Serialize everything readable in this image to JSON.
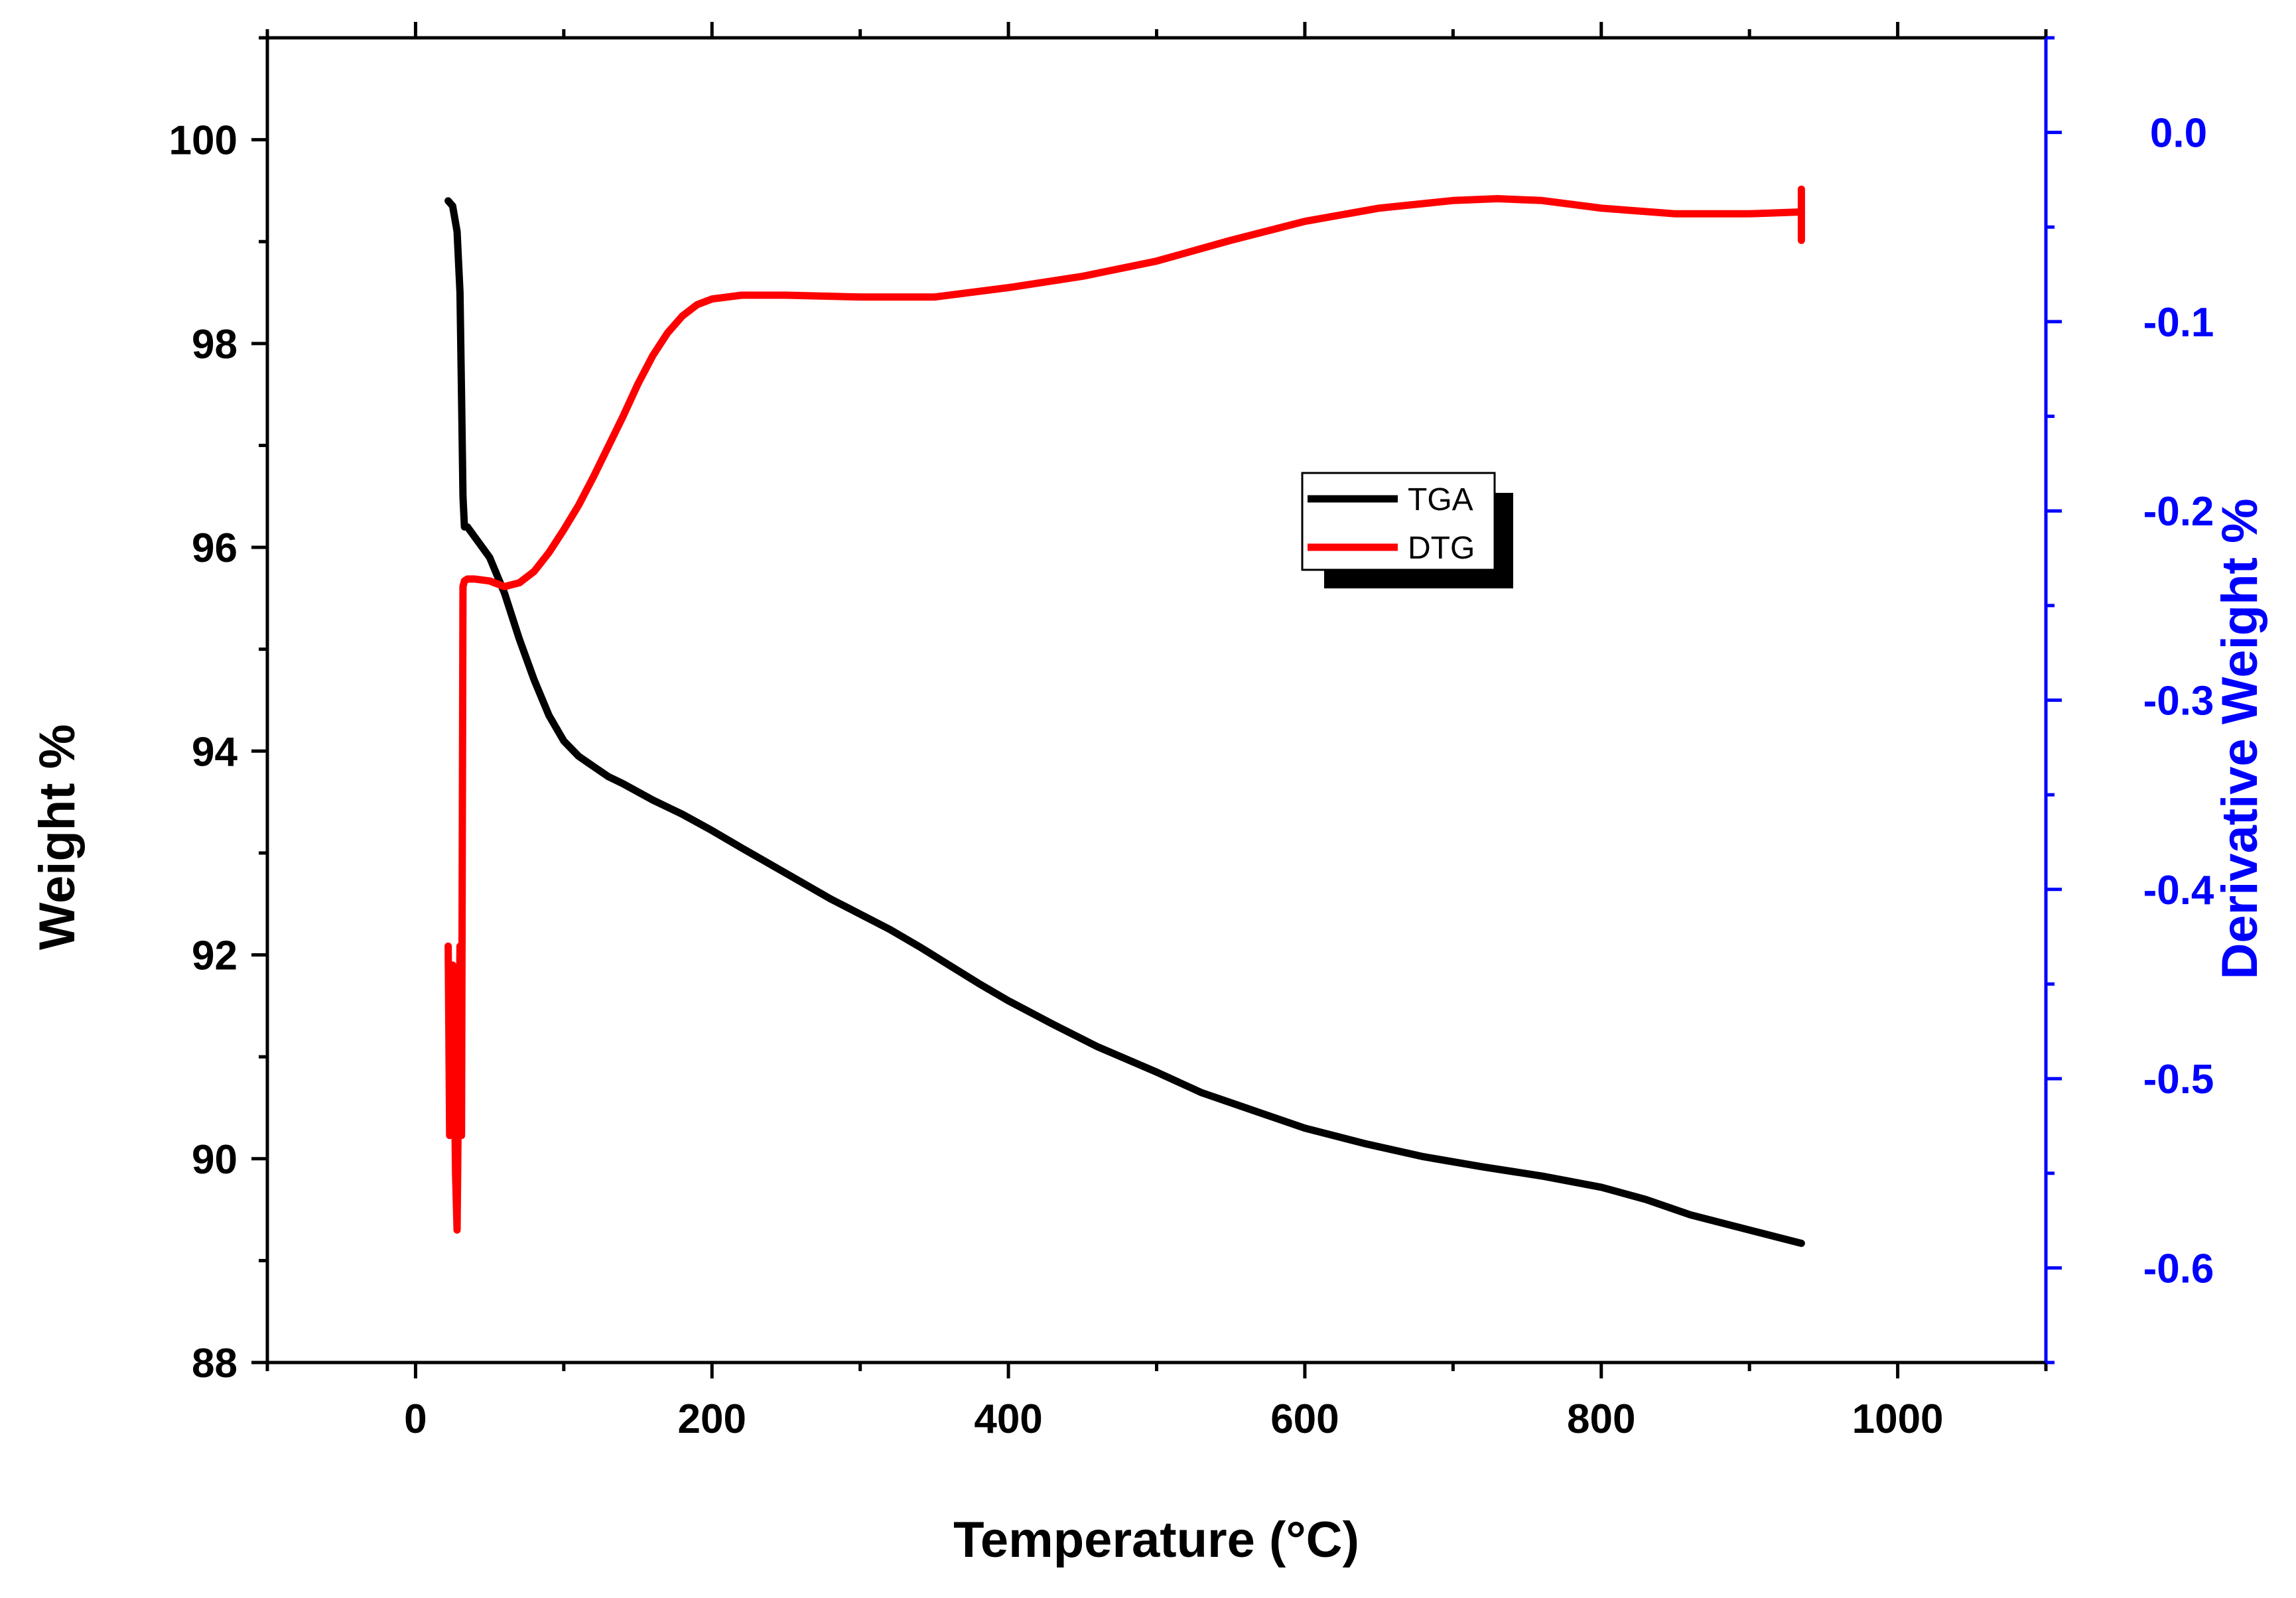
{
  "chart_data": {
    "type": "line",
    "title": "",
    "xlabel": "Temperature (°C)",
    "ylabel": "Weight %",
    "y2label": "Derivative Weight %",
    "xlim": [
      -100,
      1100
    ],
    "ylim": [
      88,
      101
    ],
    "y2lim": [
      -0.65,
      0.05
    ],
    "x_ticks": [
      0,
      200,
      400,
      600,
      800,
      1000
    ],
    "y_ticks": [
      88,
      90,
      92,
      94,
      96,
      98,
      100
    ],
    "y2_ticks": [
      0.0,
      -0.1,
      -0.2,
      -0.3,
      -0.4,
      -0.5,
      -0.6
    ],
    "x_tick_labels": [
      "0",
      "200",
      "400",
      "600",
      "800",
      "1000"
    ],
    "y_tick_labels": [
      "88",
      "90",
      "92",
      "94",
      "96",
      "98",
      "100"
    ],
    "y2_tick_labels": [
      "0.0",
      "-0.1",
      "-0.2",
      "-0.3",
      "-0.4",
      "-0.5",
      "-0.6"
    ],
    "legend_position": "center-right",
    "grid": false,
    "colors": {
      "tga": "#000000",
      "dtg": "#ff0000",
      "right_axis": "#0000ff",
      "axis": "#000000"
    },
    "series": [
      {
        "name": "TGA",
        "axis": "left",
        "x": [
          22,
          25,
          28,
          30,
          31,
          32,
          33,
          35,
          40,
          50,
          60,
          70,
          80,
          90,
          100,
          110,
          120,
          130,
          140,
          160,
          180,
          200,
          220,
          250,
          280,
          300,
          320,
          340,
          360,
          380,
          400,
          430,
          460,
          500,
          530,
          560,
          600,
          640,
          680,
          720,
          760,
          800,
          830,
          860,
          900,
          935
        ],
        "values": [
          99.4,
          99.35,
          99.1,
          98.5,
          97.5,
          96.5,
          96.2,
          96.2,
          96.1,
          95.9,
          95.55,
          95.1,
          94.7,
          94.35,
          94.1,
          93.95,
          93.85,
          93.75,
          93.68,
          93.52,
          93.38,
          93.22,
          93.05,
          92.8,
          92.55,
          92.4,
          92.25,
          92.08,
          91.9,
          91.72,
          91.55,
          91.32,
          91.1,
          90.85,
          90.65,
          90.5,
          90.3,
          90.15,
          90.02,
          89.92,
          89.83,
          89.72,
          89.6,
          89.45,
          89.3,
          89.17
        ]
      },
      {
        "name": "DTG",
        "axis": "right",
        "x": [
          22,
          23,
          24,
          25,
          26,
          27,
          28,
          29,
          30,
          31,
          32,
          33,
          35,
          40,
          50,
          60,
          70,
          80,
          90,
          100,
          110,
          120,
          130,
          140,
          150,
          160,
          170,
          180,
          190,
          200,
          220,
          250,
          300,
          350,
          400,
          450,
          500,
          550,
          600,
          650,
          700,
          730,
          760,
          800,
          850,
          900,
          935,
          935,
          935,
          935
        ],
        "values": [
          -0.43,
          -0.53,
          -0.52,
          -0.44,
          -0.49,
          -0.55,
          -0.58,
          -0.5,
          -0.43,
          -0.53,
          -0.24,
          -0.237,
          -0.236,
          -0.236,
          -0.237,
          -0.24,
          -0.238,
          -0.232,
          -0.222,
          -0.21,
          -0.197,
          -0.182,
          -0.166,
          -0.15,
          -0.133,
          -0.118,
          -0.106,
          -0.097,
          -0.091,
          -0.088,
          -0.086,
          -0.086,
          -0.087,
          -0.087,
          -0.082,
          -0.076,
          -0.068,
          -0.057,
          -0.047,
          -0.04,
          -0.036,
          -0.035,
          -0.036,
          -0.04,
          -0.043,
          -0.043,
          -0.042,
          -0.03,
          -0.057,
          -0.042
        ]
      }
    ]
  }
}
